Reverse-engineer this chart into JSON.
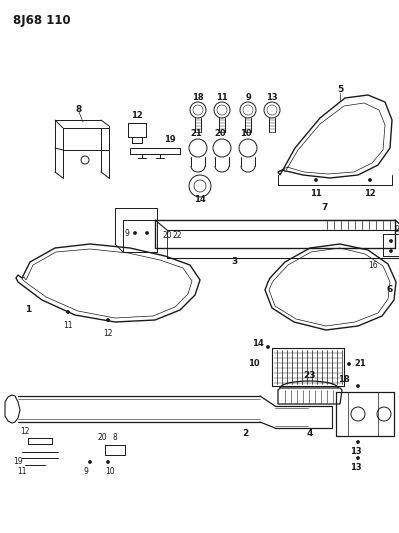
{
  "title": "8J68 110",
  "bg_color": "#ffffff",
  "fg_color": "#1a1a1a",
  "fig_width": 3.99,
  "fig_height": 5.33,
  "dpi": 100
}
